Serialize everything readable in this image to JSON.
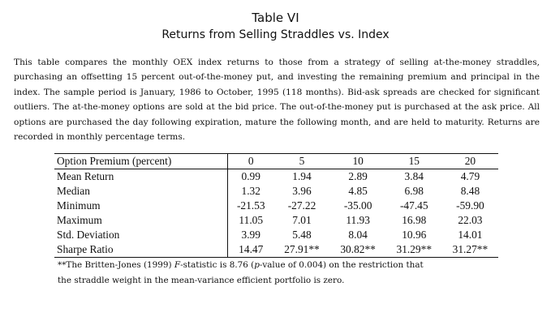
{
  "table": {
    "label": "Table VI",
    "title": "Returns from Selling Straddles vs. Index"
  },
  "caption": "This table compares the monthly OEX index returns to those from a strategy of selling at-the-money straddles, purchasing an offsetting 15 percent out-of-the-money put, and investing the remaining premium and principal in the index. The sample period is January, 1986 to October, 1995 (118 months). Bid-ask spreads are checked for significant outliers. The at-the-money options are sold at the bid price. The out-of-the-money put is purchased at the ask price. All options are purchased the day following expiration, mature the following month, and are held to maturity. Returns are recorded in monthly percentage terms.",
  "headers": [
    "Option Premium (percent)",
    "0",
    "5",
    "10",
    "15",
    "20"
  ],
  "rows": [
    {
      "label": "Mean Return",
      "values": [
        "0.99",
        "1.94",
        "2.89",
        "3.84",
        "4.79"
      ]
    },
    {
      "label": "Median",
      "values": [
        "1.32",
        "3.96",
        "4.85",
        "6.98",
        "8.48"
      ]
    },
    {
      "label": "Minimum",
      "values": [
        "-21.53",
        "-27.22",
        "-35.00",
        "-47.45",
        "-59.90"
      ]
    },
    {
      "label": "Maximum",
      "values": [
        "11.05",
        "7.01",
        "11.93",
        "16.98",
        "22.03"
      ]
    },
    {
      "label": "Std. Deviation",
      "values": [
        "3.99",
        "5.48",
        "8.04",
        "10.96",
        "14.01"
      ]
    },
    {
      "label": "Sharpe Ratio",
      "values": [
        "14.47",
        "27.91**",
        "30.82**",
        "31.29**",
        "31.27**"
      ]
    }
  ],
  "footnote": {
    "part1": "**The Britten-Jones (1999) ",
    "fstat": "F",
    "part2": "-statistic is 8.76 (",
    "pval": "p",
    "part3": "-value of 0.004) on the restriction that",
    "line2": "the straddle weight in the mean-variance efficient portfolio is zero."
  }
}
